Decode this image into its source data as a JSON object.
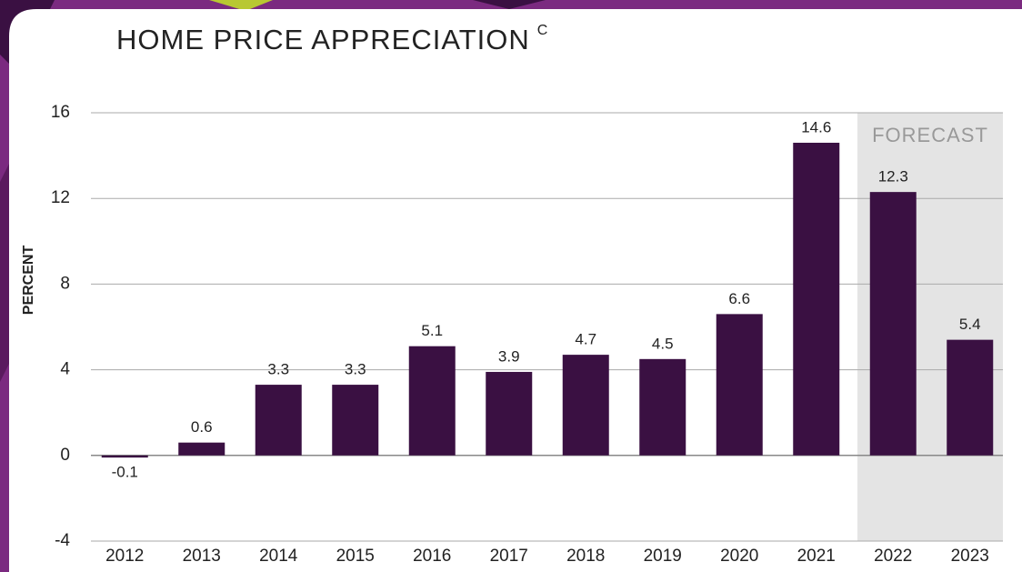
{
  "chart_data": {
    "type": "bar",
    "title": "HOME PRICE APPRECIATION",
    "title_note": "C",
    "y_label": "PERCENT",
    "categories": [
      "2012",
      "2013",
      "2014",
      "2015",
      "2016",
      "2017",
      "2018",
      "2019",
      "2020",
      "2021",
      "2022",
      "2023"
    ],
    "values": [
      -0.1,
      0.6,
      3.3,
      3.3,
      5.1,
      3.9,
      4.7,
      4.5,
      6.6,
      14.6,
      12.3,
      5.4
    ],
    "color": "#3a1042",
    "ylim": [
      -4,
      16
    ],
    "yticks": [
      -4,
      0,
      4,
      8,
      12,
      16
    ],
    "grid": true,
    "forecast": {
      "label": "FORECAST",
      "from": "2022"
    }
  }
}
